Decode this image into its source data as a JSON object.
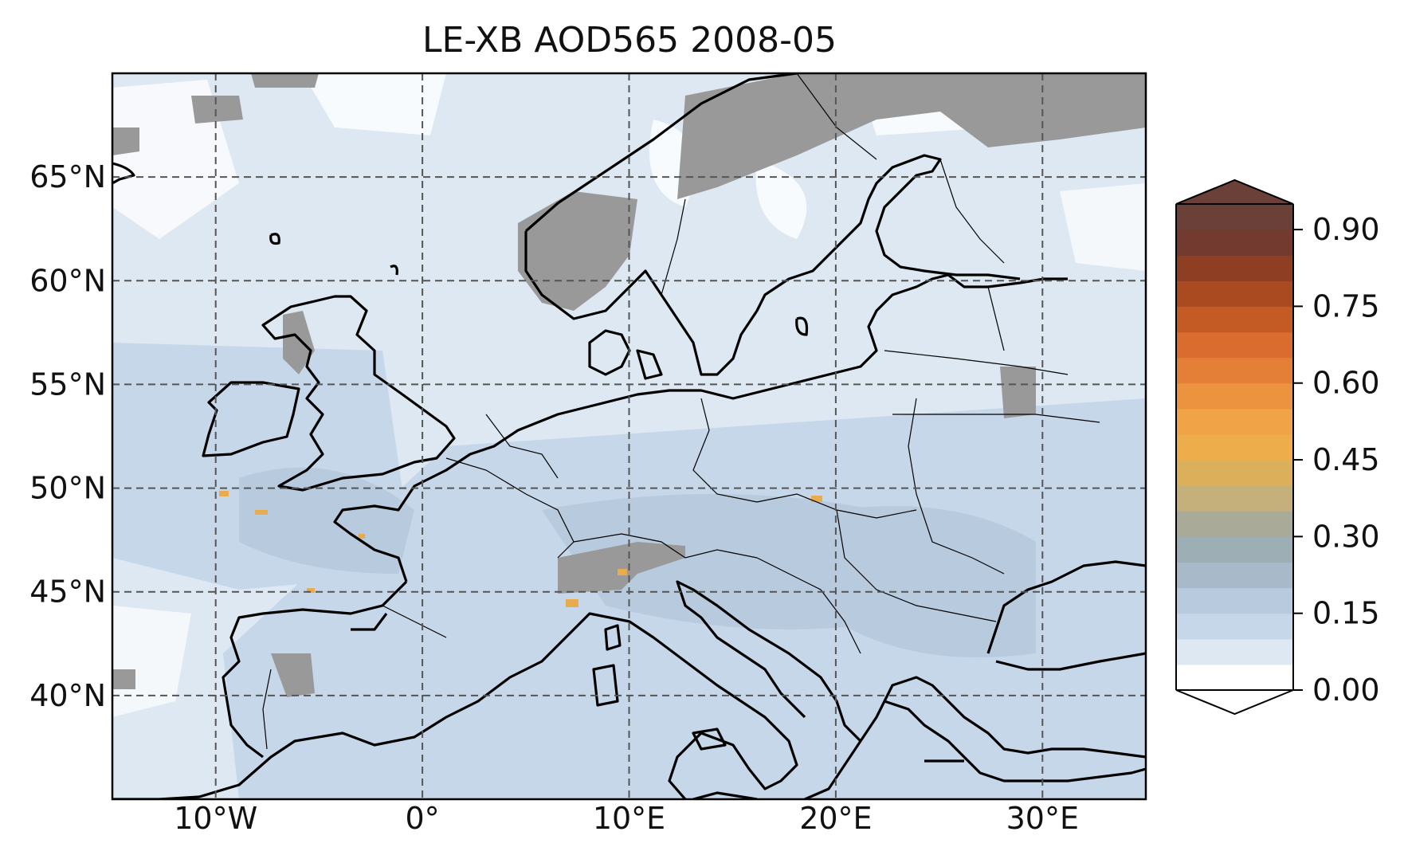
{
  "title": "LE-XB AOD565 2008-05",
  "map": {
    "projection": "plate-carree",
    "extent": {
      "lon": [
        -15,
        35
      ],
      "lat": [
        35,
        70
      ]
    },
    "gridlines": {
      "style": "dashed",
      "lons": [
        -10,
        0,
        10,
        20,
        30
      ],
      "lats": [
        40,
        45,
        50,
        55,
        60,
        65
      ]
    },
    "lon_labels": [
      "10°W",
      "0°",
      "10°E",
      "20°E",
      "30°E"
    ],
    "lat_labels": [
      "40°N",
      "45°N",
      "50°N",
      "55°N",
      "60°N",
      "65°N"
    ],
    "missing_color": "#999999",
    "dominant_value_range": [
      0.05,
      0.2
    ]
  },
  "colorbar": {
    "location": "right",
    "extend": "both",
    "ticks": [
      "0.00",
      "0.15",
      "0.30",
      "0.45",
      "0.60",
      "0.75",
      "0.90"
    ],
    "tick_values": [
      0.0,
      0.15,
      0.3,
      0.45,
      0.6,
      0.75,
      0.9
    ],
    "vmin": 0.0,
    "vmax": 0.9,
    "levels": 18,
    "colors": [
      "#ffffff",
      "#dde8f2",
      "#c7d7ea",
      "#b8cade",
      "#a8b9c9",
      "#9daeb4",
      "#a9ab98",
      "#c5b07c",
      "#dcb05a",
      "#edad4a",
      "#f0a447",
      "#ec9340",
      "#e47f37",
      "#d96c2e",
      "#c45a24",
      "#aa4a21",
      "#8e3e22",
      "#733a30",
      "#6a4038"
    ],
    "under_color": "#ffffff",
    "over_color": "#6a4038"
  }
}
